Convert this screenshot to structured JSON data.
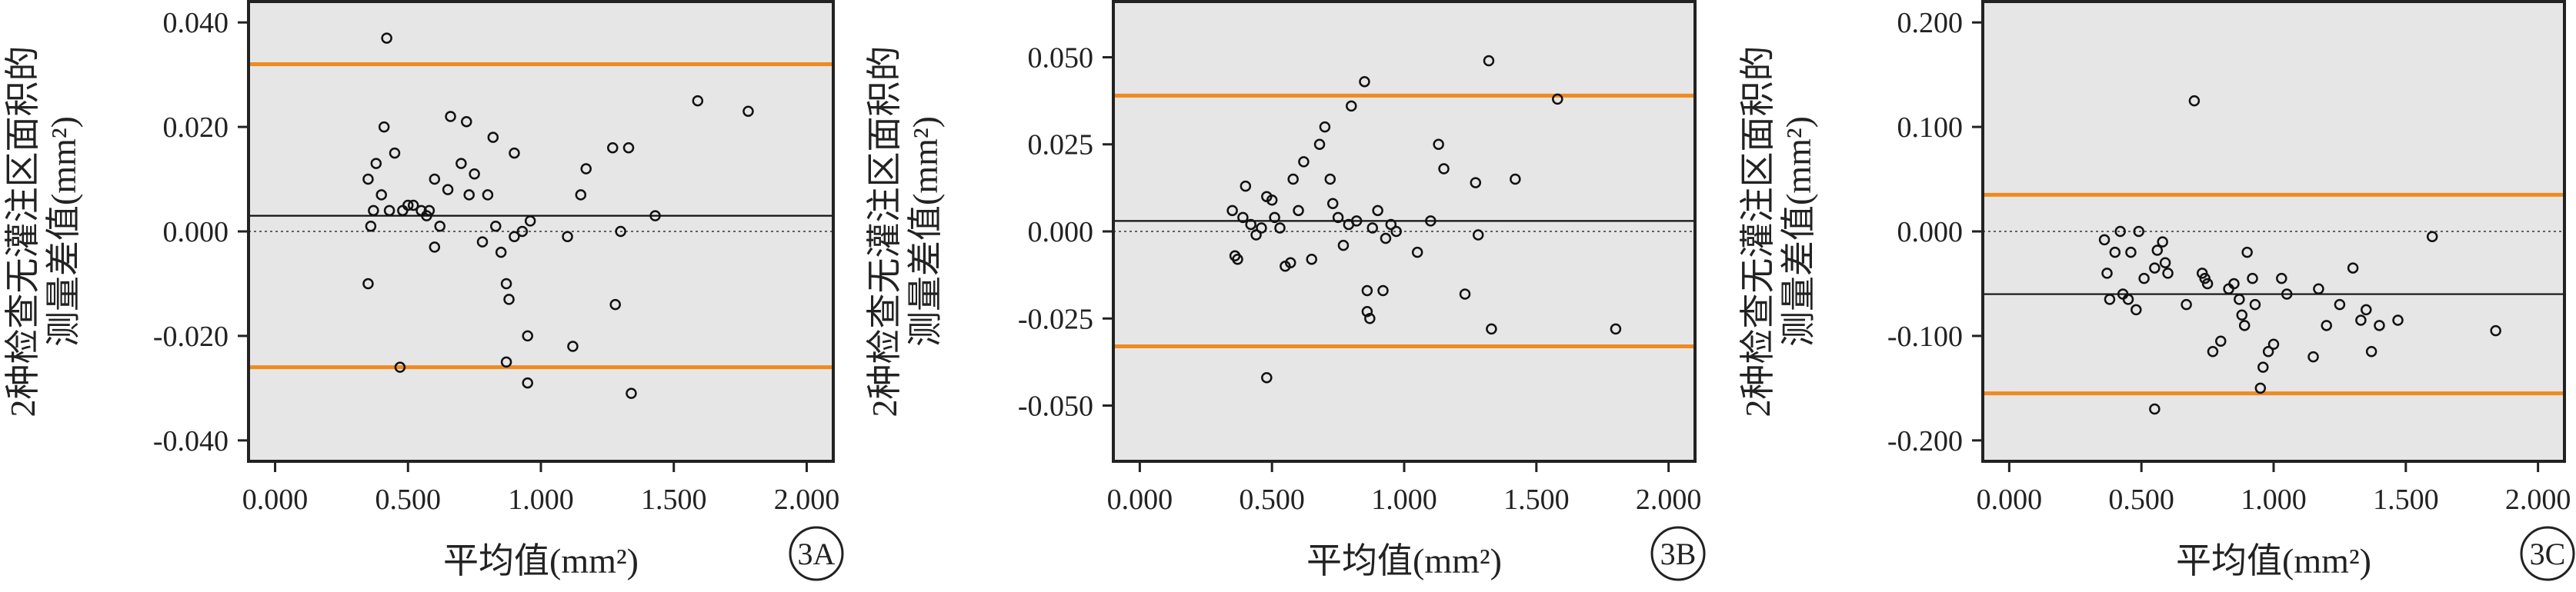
{
  "chart_data": [
    {
      "type": "scatter",
      "panel_label": "3A",
      "xlabel": "平均值(mm²)",
      "ylabel_line1": "2种检查无灌注区面积的",
      "ylabel_line2": "测量差值(mm²)",
      "xlim": [
        -0.1,
        2.1
      ],
      "ylim": [
        -0.044,
        0.044
      ],
      "x_ticks": [
        "0.000",
        "0.500",
        "1.000",
        "1.500",
        "2.000"
      ],
      "x_tick_values": [
        0,
        0.5,
        1.0,
        1.5,
        2.0
      ],
      "y_ticks": [
        "0.040",
        "0.020",
        "0.000",
        "-0.020",
        "-0.040"
      ],
      "y_tick_values": [
        0.04,
        0.02,
        0.0,
        -0.02,
        -0.04
      ],
      "mean_line": 0.003,
      "upper_limit": 0.032,
      "lower_limit": -0.026,
      "zero_line": 0.0,
      "colors": {
        "background": "#e6e6e6",
        "limits": "#f08a1e",
        "mean": "#111111",
        "points": "#111111"
      },
      "points": [
        [
          0.42,
          0.037
        ],
        [
          0.35,
          0.01
        ],
        [
          0.38,
          0.013
        ],
        [
          0.41,
          0.02
        ],
        [
          0.45,
          0.015
        ],
        [
          0.4,
          0.007
        ],
        [
          0.43,
          0.004
        ],
        [
          0.36,
          0.001
        ],
        [
          0.37,
          0.004
        ],
        [
          0.35,
          -0.01
        ],
        [
          0.48,
          0.004
        ],
        [
          0.5,
          0.005
        ],
        [
          0.52,
          0.005
        ],
        [
          0.55,
          0.004
        ],
        [
          0.57,
          0.003
        ],
        [
          0.6,
          0.01
        ],
        [
          0.58,
          0.004
        ],
        [
          0.6,
          -0.003
        ],
        [
          0.62,
          0.001
        ],
        [
          0.65,
          0.008
        ],
        [
          0.66,
          0.022
        ],
        [
          0.72,
          0.021
        ],
        [
          0.7,
          0.013
        ],
        [
          0.73,
          0.007
        ],
        [
          0.75,
          0.011
        ],
        [
          0.78,
          -0.002
        ],
        [
          0.8,
          0.007
        ],
        [
          0.82,
          0.018
        ],
        [
          0.83,
          0.001
        ],
        [
          0.85,
          -0.004
        ],
        [
          0.87,
          -0.01
        ],
        [
          0.88,
          -0.013
        ],
        [
          0.9,
          0.015
        ],
        [
          0.9,
          -0.001
        ],
        [
          0.93,
          0.0
        ],
        [
          0.96,
          0.002
        ],
        [
          0.95,
          -0.02
        ],
        [
          0.95,
          -0.029
        ],
        [
          0.87,
          -0.025
        ],
        [
          0.47,
          -0.026
        ],
        [
          1.1,
          -0.001
        ],
        [
          1.12,
          -0.022
        ],
        [
          1.15,
          0.007
        ],
        [
          1.17,
          0.012
        ],
        [
          1.27,
          0.016
        ],
        [
          1.28,
          -0.014
        ],
        [
          1.3,
          0.0
        ],
        [
          1.33,
          0.016
        ],
        [
          1.34,
          -0.031
        ],
        [
          1.43,
          0.003
        ],
        [
          1.59,
          0.025
        ],
        [
          1.78,
          0.023
        ]
      ]
    },
    {
      "type": "scatter",
      "panel_label": "3B",
      "xlabel": "平均值(mm²)",
      "ylabel_line1": "2种检查无灌注区面积的",
      "ylabel_line2": "测量差值(mm²)",
      "xlim": [
        -0.1,
        2.1
      ],
      "ylim": [
        -0.066,
        0.066
      ],
      "x_ticks": [
        "0.000",
        "0.500",
        "1.000",
        "1.500",
        "2.000"
      ],
      "x_tick_values": [
        0,
        0.5,
        1.0,
        1.5,
        2.0
      ],
      "y_ticks": [
        "0.050",
        "0.025",
        "0.000",
        "-0.025",
        "-0.050"
      ],
      "y_tick_values": [
        0.05,
        0.025,
        0.0,
        -0.025,
        -0.05
      ],
      "mean_line": 0.003,
      "upper_limit": 0.039,
      "lower_limit": -0.033,
      "zero_line": 0.0,
      "colors": {
        "background": "#e6e6e6",
        "limits": "#f08a1e",
        "mean": "#111111",
        "points": "#111111"
      },
      "points": [
        [
          0.35,
          0.006
        ],
        [
          0.37,
          -0.008
        ],
        [
          0.36,
          -0.007
        ],
        [
          0.39,
          0.004
        ],
        [
          0.4,
          0.013
        ],
        [
          0.42,
          0.002
        ],
        [
          0.44,
          -0.001
        ],
        [
          0.46,
          0.001
        ],
        [
          0.48,
          0.01
        ],
        [
          0.5,
          0.009
        ],
        [
          0.51,
          0.004
        ],
        [
          0.53,
          0.001
        ],
        [
          0.55,
          -0.01
        ],
        [
          0.57,
          -0.009
        ],
        [
          0.58,
          0.015
        ],
        [
          0.6,
          0.006
        ],
        [
          0.62,
          0.02
        ],
        [
          0.65,
          -0.008
        ],
        [
          0.68,
          0.025
        ],
        [
          0.7,
          0.03
        ],
        [
          0.72,
          0.015
        ],
        [
          0.73,
          0.008
        ],
        [
          0.75,
          0.004
        ],
        [
          0.77,
          -0.004
        ],
        [
          0.79,
          0.002
        ],
        [
          0.8,
          0.036
        ],
        [
          0.82,
          0.003
        ],
        [
          0.85,
          0.043
        ],
        [
          0.86,
          -0.017
        ],
        [
          0.86,
          -0.023
        ],
        [
          0.87,
          -0.025
        ],
        [
          0.88,
          0.001
        ],
        [
          0.9,
          0.006
        ],
        [
          0.92,
          -0.017
        ],
        [
          0.93,
          -0.002
        ],
        [
          0.95,
          0.002
        ],
        [
          0.97,
          0.0
        ],
        [
          0.48,
          -0.042
        ],
        [
          1.05,
          -0.006
        ],
        [
          1.1,
          0.003
        ],
        [
          1.13,
          0.025
        ],
        [
          1.15,
          0.018
        ],
        [
          1.23,
          -0.018
        ],
        [
          1.27,
          0.014
        ],
        [
          1.28,
          -0.001
        ],
        [
          1.32,
          0.049
        ],
        [
          1.33,
          -0.028
        ],
        [
          1.42,
          0.015
        ],
        [
          1.58,
          0.038
        ],
        [
          1.8,
          -0.028
        ]
      ]
    },
    {
      "type": "scatter",
      "panel_label": "3C",
      "xlabel": "平均值(mm²)",
      "ylabel_line1": "2种检查无灌注区面积的",
      "ylabel_line2": "测量差值(mm²)",
      "xlim": [
        -0.1,
        2.1
      ],
      "ylim": [
        -0.22,
        0.22
      ],
      "x_ticks": [
        "0.000",
        "0.500",
        "1.000",
        "1.500",
        "2.000"
      ],
      "x_tick_values": [
        0,
        0.5,
        1.0,
        1.5,
        2.0
      ],
      "y_ticks": [
        "0.200",
        "0.100",
        "0.000",
        "-0.100",
        "-0.200"
      ],
      "y_tick_values": [
        0.2,
        0.1,
        0.0,
        -0.1,
        -0.2
      ],
      "mean_line": -0.06,
      "upper_limit": 0.035,
      "lower_limit": -0.155,
      "zero_line": 0.0,
      "colors": {
        "background": "#e6e6e6",
        "limits": "#f08a1e",
        "mean": "#111111",
        "points": "#111111"
      },
      "points": [
        [
          0.36,
          -0.008
        ],
        [
          0.37,
          -0.04
        ],
        [
          0.38,
          -0.065
        ],
        [
          0.4,
          -0.02
        ],
        [
          0.42,
          0.0
        ],
        [
          0.43,
          -0.06
        ],
        [
          0.45,
          -0.065
        ],
        [
          0.46,
          -0.02
        ],
        [
          0.48,
          -0.075
        ],
        [
          0.49,
          0.0
        ],
        [
          0.51,
          -0.045
        ],
        [
          0.55,
          -0.035
        ],
        [
          0.56,
          -0.018
        ],
        [
          0.58,
          -0.01
        ],
        [
          0.59,
          -0.03
        ],
        [
          0.6,
          -0.04
        ],
        [
          0.55,
          -0.17
        ],
        [
          0.67,
          -0.07
        ],
        [
          0.7,
          0.125
        ],
        [
          0.73,
          -0.04
        ],
        [
          0.74,
          -0.045
        ],
        [
          0.75,
          -0.05
        ],
        [
          0.77,
          -0.115
        ],
        [
          0.8,
          -0.105
        ],
        [
          0.83,
          -0.055
        ],
        [
          0.85,
          -0.05
        ],
        [
          0.87,
          -0.065
        ],
        [
          0.88,
          -0.08
        ],
        [
          0.89,
          -0.09
        ],
        [
          0.9,
          -0.02
        ],
        [
          0.92,
          -0.045
        ],
        [
          0.93,
          -0.07
        ],
        [
          0.95,
          -0.15
        ],
        [
          0.96,
          -0.13
        ],
        [
          0.98,
          -0.115
        ],
        [
          1.0,
          -0.108
        ],
        [
          1.03,
          -0.045
        ],
        [
          1.05,
          -0.06
        ],
        [
          1.15,
          -0.12
        ],
        [
          1.17,
          -0.055
        ],
        [
          1.2,
          -0.09
        ],
        [
          1.25,
          -0.07
        ],
        [
          1.3,
          -0.035
        ],
        [
          1.33,
          -0.085
        ],
        [
          1.35,
          -0.075
        ],
        [
          1.37,
          -0.115
        ],
        [
          1.4,
          -0.09
        ],
        [
          1.47,
          -0.085
        ],
        [
          1.6,
          -0.005
        ],
        [
          1.84,
          -0.095
        ]
      ]
    }
  ]
}
